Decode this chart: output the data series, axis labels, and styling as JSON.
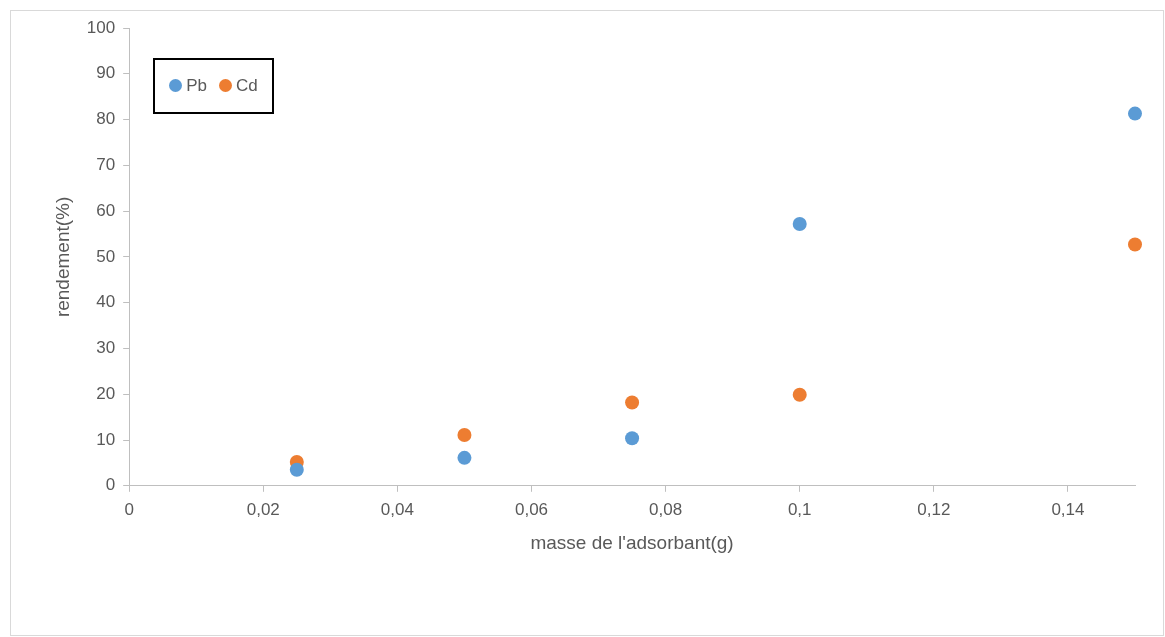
{
  "chart_data": {
    "type": "scatter",
    "xlabel": "masse de l'adsorbant(g)",
    "ylabel": "rendement(%)",
    "xlim": [
      0,
      0.15
    ],
    "xticks": [
      0,
      {
        "value": 0.02,
        "label": "0,02"
      },
      {
        "value": 0.04,
        "label": "0,04"
      },
      {
        "value": 0.06,
        "label": "0,06"
      },
      {
        "value": 0.08,
        "label": "0,08"
      },
      {
        "value": 0.1,
        "label": "0,1"
      },
      {
        "value": 0.12,
        "label": "0,12"
      },
      {
        "value": 0.14,
        "label": "0,14"
      }
    ],
    "ylim": [
      0,
      100
    ],
    "yticks": [
      0,
      10,
      20,
      30,
      40,
      50,
      60,
      70,
      80,
      90,
      100
    ],
    "x": [
      0.025,
      0.05,
      0.075,
      0.1,
      0.15
    ],
    "series": [
      {
        "name": "Pb",
        "color": "#5b9bd5",
        "values": [
          3.5,
          6.1,
          10.4,
          57.2,
          81.3
        ]
      },
      {
        "name": "Cd",
        "color": "#ed7d31",
        "values": [
          5.2,
          11.1,
          18.2,
          19.9,
          52.7
        ]
      }
    ],
    "grid": false,
    "legend": "top left",
    "marker": "circle"
  }
}
